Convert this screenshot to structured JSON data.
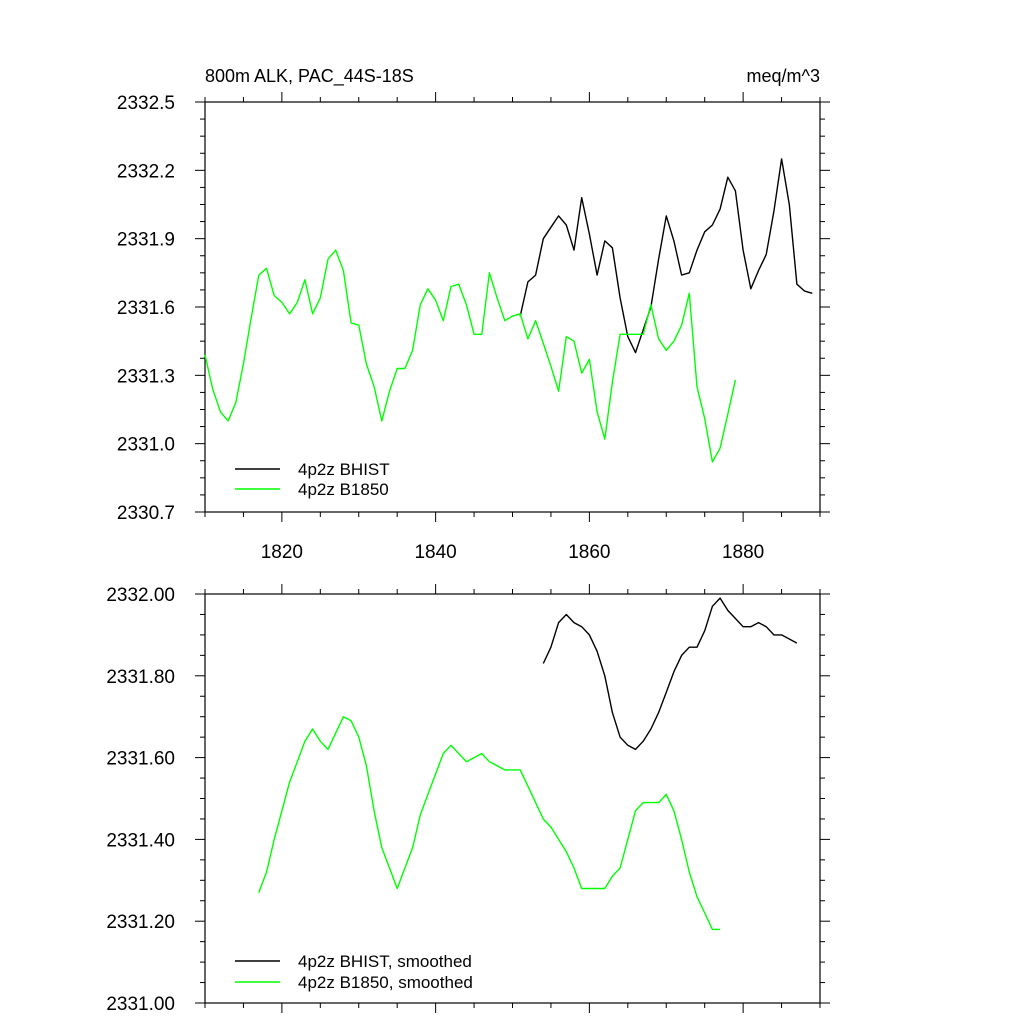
{
  "chart_data": [
    {
      "type": "line",
      "title": "800m ALK, PAC_44S-18S",
      "units": "meq/m^3",
      "xlim": [
        1810,
        1890
      ],
      "ylim": [
        2330.7,
        2332.5
      ],
      "xticks": [
        1820,
        1840,
        1860,
        1880
      ],
      "yticks": [
        "2330.7",
        "2331.0",
        "2331.3",
        "2331.6",
        "2331.9",
        "2332.2",
        "2332.5"
      ],
      "legend_position": "bottom-left",
      "series": [
        {
          "name": "4p2z BHIST",
          "color": "#000000",
          "x": [
            1851,
            1852,
            1853,
            1854,
            1855,
            1856,
            1857,
            1858,
            1859,
            1860,
            1861,
            1862,
            1863,
            1864,
            1865,
            1866,
            1867,
            1868,
            1869,
            1870,
            1871,
            1872,
            1873,
            1874,
            1875,
            1876,
            1877,
            1878,
            1879,
            1880,
            1881,
            1882,
            1883,
            1884,
            1885,
            1886,
            1887,
            1888,
            1889
          ],
          "y": [
            2331.56,
            2331.71,
            2331.74,
            2331.9,
            2331.95,
            2332.0,
            2331.96,
            2331.85,
            2332.08,
            2331.92,
            2331.74,
            2331.89,
            2331.86,
            2331.64,
            2331.47,
            2331.4,
            2331.5,
            2331.6,
            2331.81,
            2332.0,
            2331.89,
            2331.74,
            2331.75,
            2331.85,
            2331.93,
            2331.96,
            2332.03,
            2332.17,
            2332.11,
            2331.85,
            2331.68,
            2331.76,
            2331.83,
            2332.02,
            2332.25,
            2332.05,
            2331.7,
            2331.67,
            2331.66
          ]
        },
        {
          "name": "4p2z B1850",
          "color": "#00ff00",
          "x": [
            1810,
            1811,
            1812,
            1813,
            1814,
            1815,
            1816,
            1817,
            1818,
            1819,
            1820,
            1821,
            1822,
            1823,
            1824,
            1825,
            1826,
            1827,
            1828,
            1829,
            1830,
            1831,
            1832,
            1833,
            1834,
            1835,
            1836,
            1837,
            1838,
            1839,
            1840,
            1841,
            1842,
            1843,
            1844,
            1845,
            1846,
            1847,
            1848,
            1849,
            1850,
            1851,
            1852,
            1853,
            1854,
            1855,
            1856,
            1857,
            1858,
            1859,
            1860,
            1861,
            1862,
            1863,
            1864,
            1865,
            1866,
            1867,
            1868,
            1869,
            1870,
            1871,
            1872,
            1873,
            1874,
            1875,
            1876,
            1877,
            1878,
            1879
          ],
          "y": [
            2331.39,
            2331.24,
            2331.14,
            2331.1,
            2331.18,
            2331.35,
            2331.55,
            2331.74,
            2331.77,
            2331.65,
            2331.62,
            2331.57,
            2331.62,
            2331.72,
            2331.57,
            2331.64,
            2331.81,
            2331.85,
            2331.76,
            2331.53,
            2331.52,
            2331.35,
            2331.25,
            2331.1,
            2331.23,
            2331.33,
            2331.33,
            2331.41,
            2331.61,
            2331.68,
            2331.63,
            2331.54,
            2331.69,
            2331.7,
            2331.61,
            2331.48,
            2331.48,
            2331.75,
            2331.64,
            2331.54,
            2331.56,
            2331.57,
            2331.46,
            2331.54,
            2331.44,
            2331.34,
            2331.23,
            2331.47,
            2331.45,
            2331.31,
            2331.37,
            2331.14,
            2331.02,
            2331.27,
            2331.48,
            2331.48,
            2331.48,
            2331.48,
            2331.61,
            2331.46,
            2331.41,
            2331.45,
            2331.52,
            2331.66,
            2331.25,
            2331.11,
            2330.92,
            2330.98,
            2331.13,
            2331.28
          ]
        }
      ]
    },
    {
      "type": "line",
      "title": "",
      "xlim": [
        1810,
        1890
      ],
      "ylim": [
        2331.0,
        2332.0
      ],
      "xticks": [
        1820,
        1840,
        1860,
        1880
      ],
      "yticks": [
        "2331.00",
        "2331.20",
        "2331.40",
        "2331.60",
        "2331.80",
        "2332.00"
      ],
      "legend_position": "bottom-left",
      "series": [
        {
          "name": "4p2z BHIST, smoothed",
          "color": "#000000",
          "x": [
            1854,
            1855,
            1856,
            1857,
            1858,
            1859,
            1860,
            1861,
            1862,
            1863,
            1864,
            1865,
            1866,
            1867,
            1868,
            1869,
            1870,
            1871,
            1872,
            1873,
            1874,
            1875,
            1876,
            1877,
            1878,
            1879,
            1880,
            1881,
            1882,
            1883,
            1884,
            1885,
            1886,
            1887
          ],
          "y": [
            2331.83,
            2331.87,
            2331.93,
            2331.95,
            2331.93,
            2331.92,
            2331.9,
            2331.86,
            2331.8,
            2331.71,
            2331.65,
            2331.63,
            2331.62,
            2331.64,
            2331.67,
            2331.71,
            2331.76,
            2331.81,
            2331.85,
            2331.87,
            2331.87,
            2331.91,
            2331.97,
            2331.99,
            2331.96,
            2331.94,
            2331.92,
            2331.92,
            2331.93,
            2331.92,
            2331.9,
            2331.9,
            2331.89,
            2331.88
          ]
        },
        {
          "name": "4p2z B1850, smoothed",
          "color": "#00ff00",
          "x": [
            1817,
            1818,
            1819,
            1820,
            1821,
            1822,
            1823,
            1824,
            1825,
            1826,
            1827,
            1828,
            1829,
            1830,
            1831,
            1832,
            1833,
            1834,
            1835,
            1836,
            1837,
            1838,
            1839,
            1840,
            1841,
            1842,
            1843,
            1844,
            1845,
            1846,
            1847,
            1848,
            1849,
            1850,
            1851,
            1852,
            1853,
            1854,
            1855,
            1856,
            1857,
            1858,
            1859,
            1860,
            1861,
            1862,
            1863,
            1864,
            1865,
            1866,
            1867,
            1868,
            1869,
            1870,
            1871,
            1872,
            1873,
            1874,
            1875,
            1876,
            1877
          ],
          "y": [
            2331.27,
            2331.32,
            2331.4,
            2331.47,
            2331.54,
            2331.59,
            2331.64,
            2331.67,
            2331.64,
            2331.62,
            2331.66,
            2331.7,
            2331.69,
            2331.65,
            2331.58,
            2331.47,
            2331.38,
            2331.33,
            2331.28,
            2331.33,
            2331.38,
            2331.46,
            2331.51,
            2331.56,
            2331.61,
            2331.63,
            2331.61,
            2331.59,
            2331.6,
            2331.61,
            2331.59,
            2331.58,
            2331.57,
            2331.57,
            2331.57,
            2331.53,
            2331.49,
            2331.45,
            2331.43,
            2331.4,
            2331.37,
            2331.33,
            2331.28,
            2331.28,
            2331.28,
            2331.28,
            2331.31,
            2331.33,
            2331.4,
            2331.47,
            2331.49,
            2331.49,
            2331.49,
            2331.51,
            2331.47,
            2331.4,
            2331.32,
            2331.26,
            2331.22,
            2331.18,
            2331.18
          ]
        }
      ]
    }
  ]
}
